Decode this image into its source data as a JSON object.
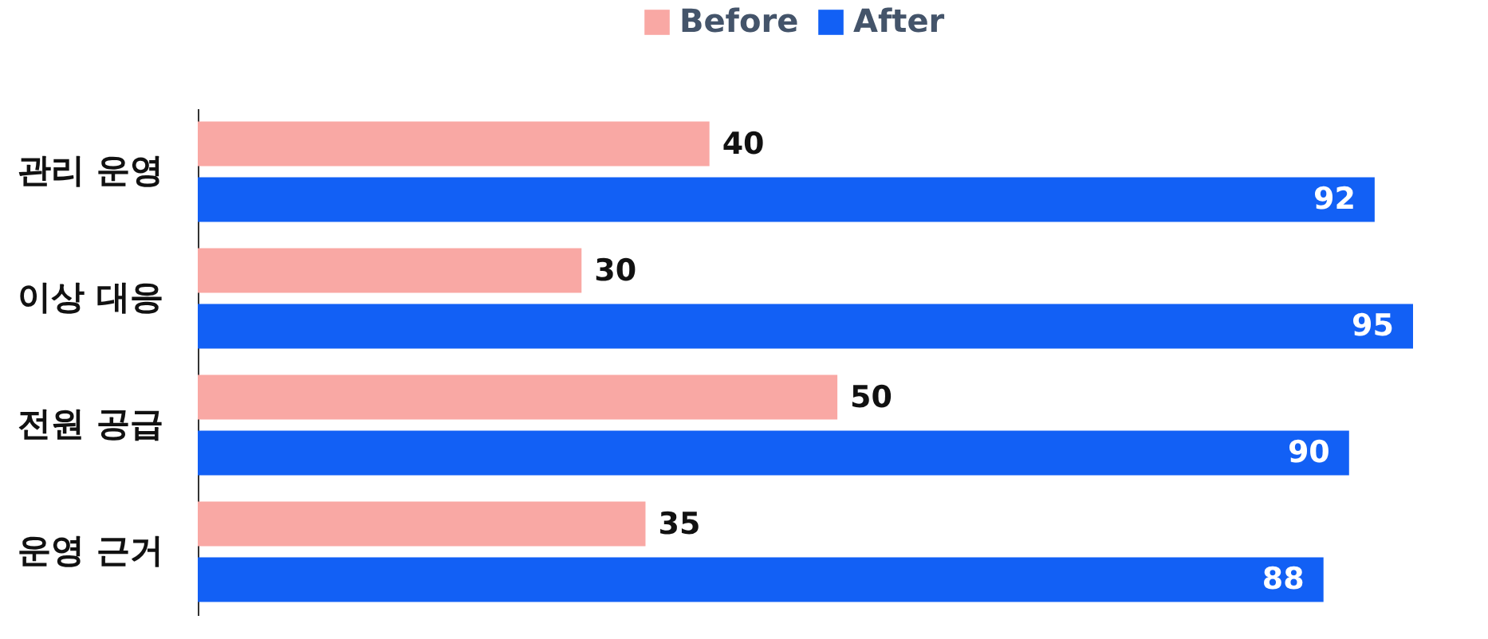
{
  "chart_data": {
    "type": "bar",
    "orientation": "horizontal",
    "categories": [
      "관리 운영",
      "이상 대응",
      "전원 공급",
      "운영 근거"
    ],
    "series": [
      {
        "name": "Before",
        "color": "#f9a8a4",
        "values": [
          40,
          30,
          50,
          35
        ]
      },
      {
        "name": "After",
        "color": "#1260f5",
        "values": [
          92,
          95,
          90,
          88
        ]
      }
    ],
    "xlim": [
      0,
      95
    ],
    "data_labels": true,
    "legend": "top",
    "tick_labels": "y",
    "grid": false
  }
}
